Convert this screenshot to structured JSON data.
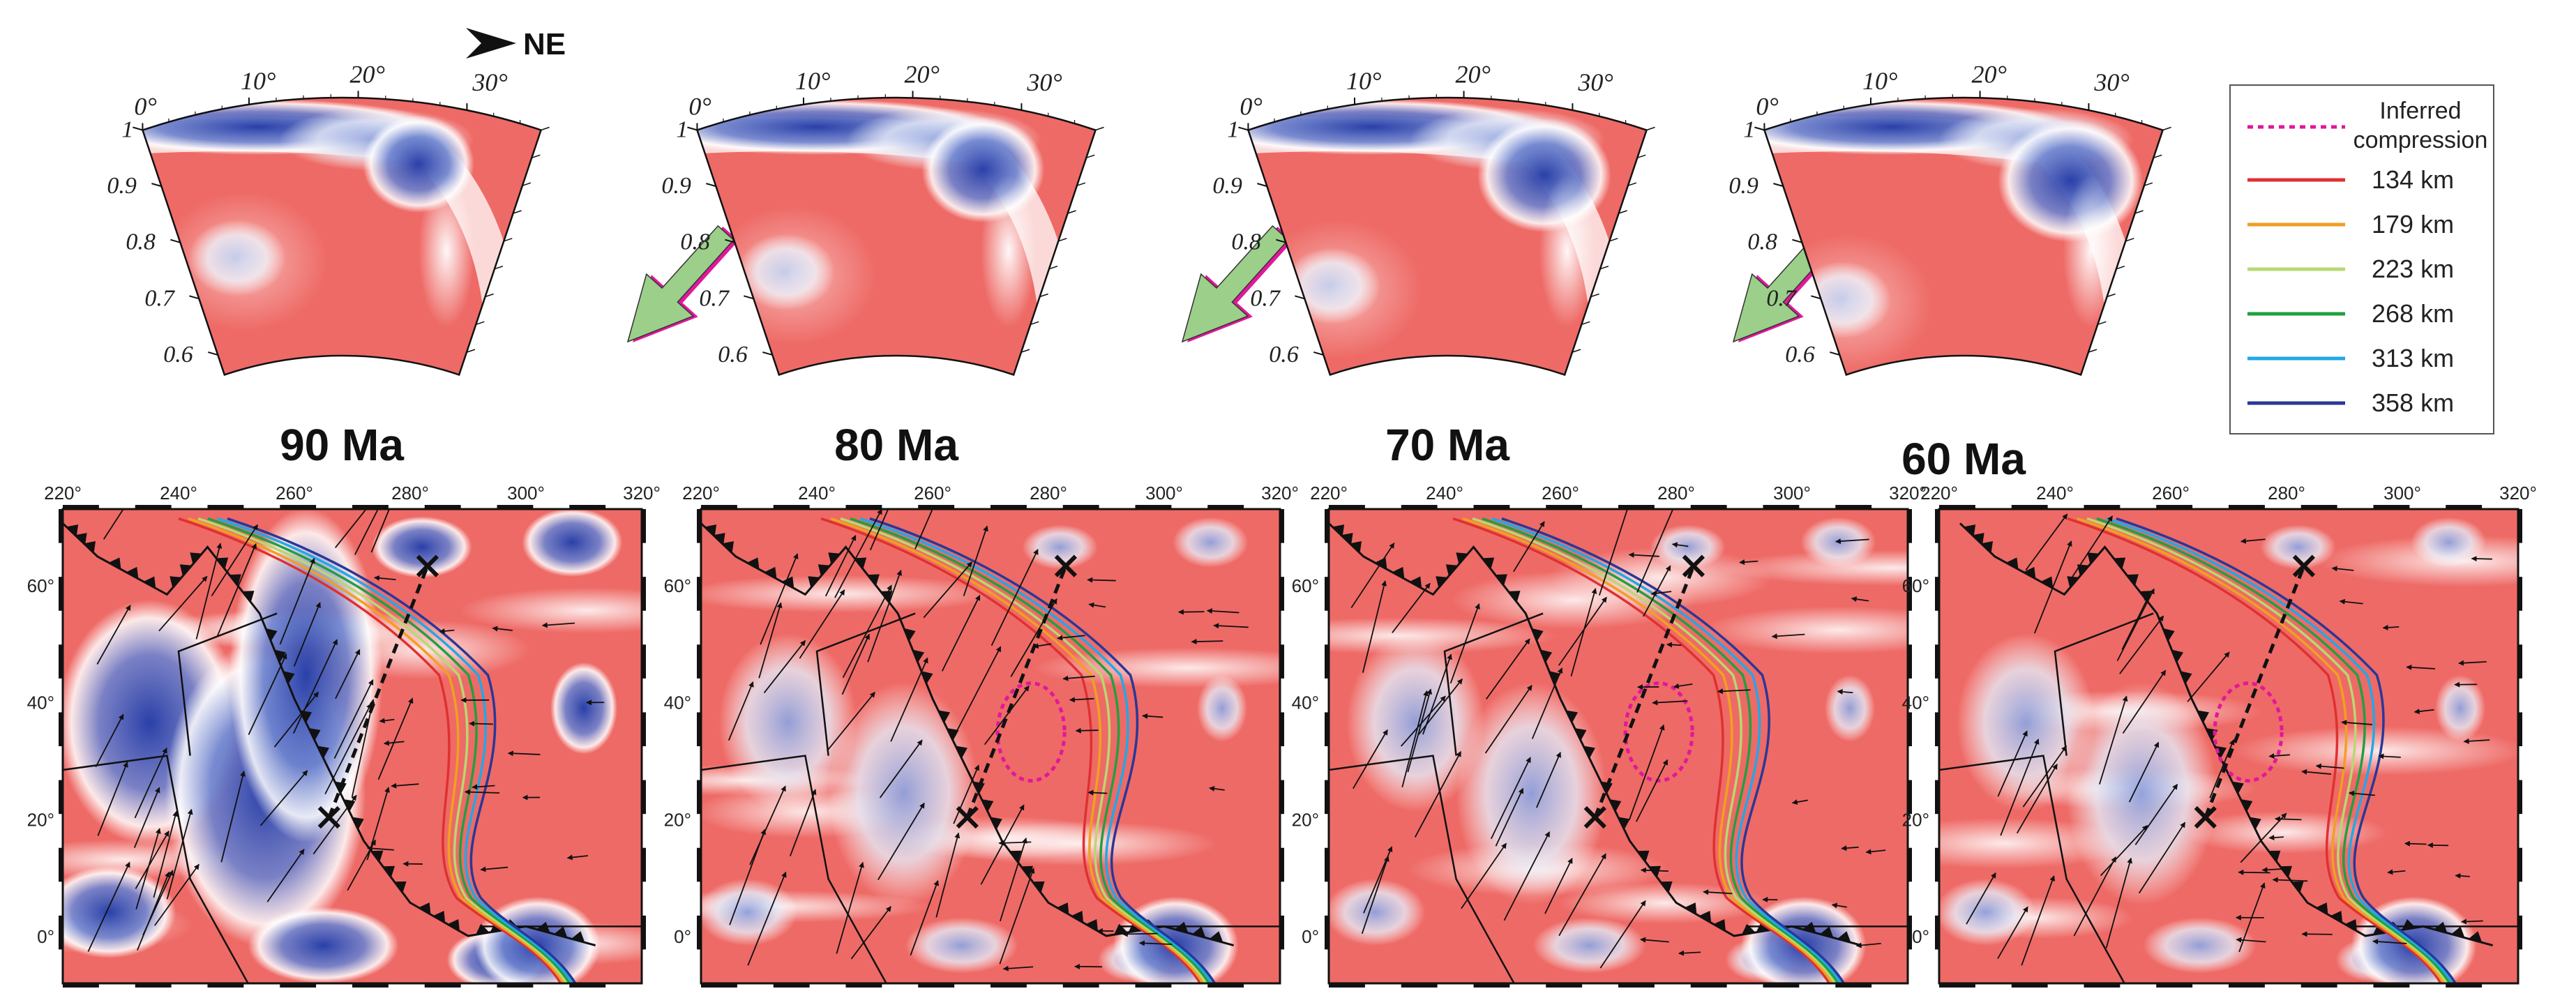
{
  "direction_label": "NE",
  "section_angle_ticks": [
    "0°",
    "10°",
    "20°",
    "30°"
  ],
  "section_radius_ticks": [
    "1",
    "0.9",
    "0.8",
    "0.7",
    "0.6"
  ],
  "map_lon_ticks": [
    "220°",
    "240°",
    "260°",
    "280°",
    "300°",
    "320°"
  ],
  "map_lat_ticks": [
    "60°",
    "40°",
    "20°",
    "0°"
  ],
  "panels": [
    {
      "age": "90 Ma"
    },
    {
      "age": "80 Ma"
    },
    {
      "age": "70 Ma"
    },
    {
      "age": "60 Ma"
    }
  ],
  "legend": {
    "items": [
      {
        "label": "Inferred\ncompression",
        "color": "#e0189a",
        "style": "dotted"
      },
      {
        "label": "134 km",
        "color": "#e03030",
        "style": "solid"
      },
      {
        "label": "179 km",
        "color": "#f0a020",
        "style": "solid"
      },
      {
        "label": "223 km",
        "color": "#b8d870",
        "style": "solid"
      },
      {
        "label": "268 km",
        "color": "#20a040",
        "style": "solid"
      },
      {
        "label": "313 km",
        "color": "#20a8e8",
        "style": "solid"
      },
      {
        "label": "358 km",
        "color": "#283898",
        "style": "solid"
      }
    ]
  },
  "colors": {
    "warm": "#ee6a66",
    "cold": "#2a40a8",
    "arrow_fill": "#9ccf8a",
    "arrow_outline": "#e0189a"
  }
}
